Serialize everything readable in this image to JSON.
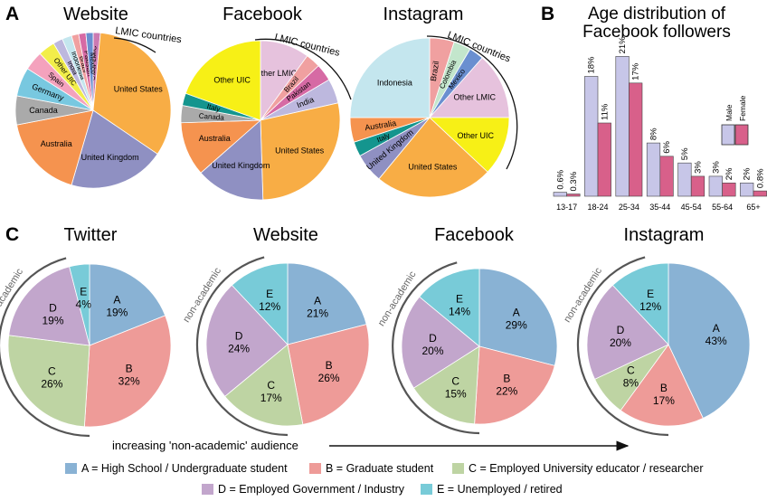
{
  "panel_labels": {
    "a": "A",
    "b": "B",
    "c": "C"
  },
  "lmic_label": "LMIC countries",
  "nonacademic_label": "non-academic",
  "bottom_note": "increasing 'non-academic' audience",
  "colors": {
    "A": "#89b2d4",
    "B": "#ee9b98",
    "C": "#bed4a3",
    "D": "#c2a6cc",
    "E": "#78cbd8",
    "male": "#c7c6e8",
    "female": "#d8608a"
  },
  "legend": [
    {
      "key": "A",
      "label": "A = High School / Undergraduate student"
    },
    {
      "key": "B",
      "label": "B = Graduate student"
    },
    {
      "key": "C",
      "label": "C = Employed University educator / researcher"
    },
    {
      "key": "D",
      "label": "D = Employed Government / Industry"
    },
    {
      "key": "E",
      "label": "E = Unemployed / retired"
    }
  ],
  "chart_data": [
    {
      "panel": "A",
      "type": "pie",
      "title": "Website",
      "slices": [
        {
          "label": "Other LMIC",
          "value": 1.5,
          "color": "#cc7ab2"
        },
        {
          "label": "United States",
          "value": 33,
          "color": "#f8ad45"
        },
        {
          "label": "United Kingdom",
          "value": 20,
          "color": "#8f90c2"
        },
        {
          "label": "Australia",
          "value": 17.5,
          "color": "#f5934f"
        },
        {
          "label": "Canada",
          "value": 6,
          "color": "#aaaaaa"
        },
        {
          "label": "Germany",
          "value": 6,
          "color": "#78c8e0"
        },
        {
          "label": "Spain",
          "value": 4,
          "color": "#f4a2bd"
        },
        {
          "label": "Other UIC",
          "value": 3.5,
          "color": "#f2ee4a"
        },
        {
          "label": "India",
          "value": 2,
          "color": "#bdb8de"
        },
        {
          "label": "Indonesia",
          "value": 2,
          "color": "#c4e6ee"
        },
        {
          "label": "Brazil",
          "value": 1.5,
          "color": "#f0a0a0"
        },
        {
          "label": "Pakistan",
          "value": 1.5,
          "color": "#d66aa4"
        },
        {
          "label": "Mexico",
          "value": 1.5,
          "color": "#6a8fd0"
        }
      ]
    },
    {
      "panel": "A",
      "type": "pie",
      "title": "Facebook",
      "slices": [
        {
          "label": "Other LMIC",
          "value": 10,
          "color": "#e6c2dd"
        },
        {
          "label": "Brazil",
          "value": 3,
          "color": "#f0a0a0"
        },
        {
          "label": "Pakistan",
          "value": 3.5,
          "color": "#d66aa4"
        },
        {
          "label": "India",
          "value": 5,
          "color": "#bdb8de"
        },
        {
          "label": "United States",
          "value": 28,
          "color": "#f8ad45"
        },
        {
          "label": "United Kingdom",
          "value": 14,
          "color": "#8f90c2"
        },
        {
          "label": "Australia",
          "value": 11,
          "color": "#f5934f"
        },
        {
          "label": "Canada",
          "value": 3.5,
          "color": "#aaaaaa"
        },
        {
          "label": "Italy",
          "value": 2.5,
          "color": "#14958e"
        },
        {
          "label": "Other UIC",
          "value": 19.5,
          "color": "#f7f016"
        }
      ]
    },
    {
      "panel": "A",
      "type": "pie",
      "title": "Instagram",
      "slices": [
        {
          "label": "Brazil",
          "value": 5,
          "color": "#f0a0a0"
        },
        {
          "label": "Colombia",
          "value": 3.5,
          "color": "#c3e6cc"
        },
        {
          "label": "Mexico",
          "value": 3,
          "color": "#6a8fd0"
        },
        {
          "label": "Other LMIC",
          "value": 13.5,
          "color": "#e6c2dd"
        },
        {
          "label": "Other UIC",
          "value": 12,
          "color": "#f7f016"
        },
        {
          "label": "United States",
          "value": 24,
          "color": "#f8ad45"
        },
        {
          "label": "United Kingdom",
          "value": 6,
          "color": "#8f90c2"
        },
        {
          "label": "Italy",
          "value": 3,
          "color": "#14958e"
        },
        {
          "label": "Australia",
          "value": 5,
          "color": "#f5934f"
        },
        {
          "label": "Indonesia",
          "value": 25,
          "color": "#c4e6ee"
        }
      ]
    },
    {
      "panel": "B",
      "type": "bar",
      "title": "Age distribution of Facebook followers",
      "categories": [
        "13-17",
        "18-24",
        "25-34",
        "35-44",
        "45-54",
        "55-64",
        "65+"
      ],
      "series": [
        {
          "name": "Male",
          "values": [
            0.6,
            18,
            21,
            8,
            5,
            3,
            2
          ],
          "labels": [
            "0.6%",
            "18%",
            "21%",
            "8%",
            "5%",
            "3%",
            "2%"
          ]
        },
        {
          "name": "Female",
          "values": [
            0.3,
            11,
            17,
            6,
            3,
            2,
            0.8
          ],
          "labels": [
            "0.3%",
            "11%",
            "17%",
            "6%",
            "3%",
            "2%",
            "0.8%"
          ]
        }
      ],
      "ylim": [
        0,
        22
      ]
    },
    {
      "panel": "C",
      "type": "pie",
      "title": "Twitter",
      "slices": [
        {
          "key": "A",
          "label": "A",
          "value": 19,
          "pct": "19%"
        },
        {
          "key": "B",
          "label": "B",
          "value": 32,
          "pct": "32%"
        },
        {
          "key": "C",
          "label": "C",
          "value": 26,
          "pct": "26%"
        },
        {
          "key": "D",
          "label": "D",
          "value": 19,
          "pct": "19%"
        },
        {
          "key": "E",
          "label": "E",
          "value": 4,
          "pct": "4%"
        }
      ]
    },
    {
      "panel": "C",
      "type": "pie",
      "title": "Website",
      "slices": [
        {
          "key": "A",
          "label": "A",
          "value": 21,
          "pct": "21%"
        },
        {
          "key": "B",
          "label": "B",
          "value": 26,
          "pct": "26%"
        },
        {
          "key": "C",
          "label": "C",
          "value": 17,
          "pct": "17%"
        },
        {
          "key": "D",
          "label": "D",
          "value": 24,
          "pct": "24%"
        },
        {
          "key": "E",
          "label": "E",
          "value": 12,
          "pct": "12%"
        }
      ]
    },
    {
      "panel": "C",
      "type": "pie",
      "title": "Facebook",
      "slices": [
        {
          "key": "A",
          "label": "A",
          "value": 29,
          "pct": "29%"
        },
        {
          "key": "B",
          "label": "B",
          "value": 22,
          "pct": "22%"
        },
        {
          "key": "C",
          "label": "C",
          "value": 15,
          "pct": "15%"
        },
        {
          "key": "D",
          "label": "D",
          "value": 20,
          "pct": "20%"
        },
        {
          "key": "E",
          "label": "E",
          "value": 14,
          "pct": "14%"
        }
      ]
    },
    {
      "panel": "C",
      "type": "pie",
      "title": "Instagram",
      "slices": [
        {
          "key": "A",
          "label": "A",
          "value": 43,
          "pct": "43%"
        },
        {
          "key": "B",
          "label": "B",
          "value": 17,
          "pct": "17%"
        },
        {
          "key": "C",
          "label": "C",
          "value": 8,
          "pct": "8%"
        },
        {
          "key": "D",
          "label": "D",
          "value": 20,
          "pct": "20%"
        },
        {
          "key": "E",
          "label": "E",
          "value": 12,
          "pct": "12%"
        }
      ]
    }
  ]
}
